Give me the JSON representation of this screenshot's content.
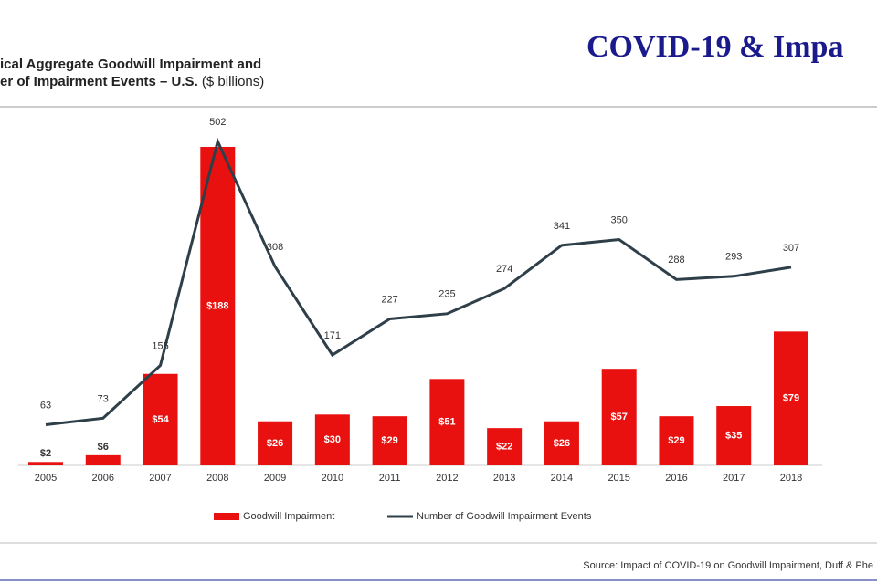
{
  "header": "COVID-19 & Impa",
  "source": "Source: Impact of COVID-19 on Goodwill Impairment, Duff & Phe",
  "chart_data": {
    "type": "bar",
    "title": [
      "ical Aggregate Goodwill Impairment and",
      "er of Impairment Events – U.S."
    ],
    "title_unit": "($ billions)",
    "categories": [
      "2005",
      "2006",
      "2007",
      "2008",
      "2009",
      "2010",
      "2011",
      "2012",
      "2013",
      "2014",
      "2015",
      "2016",
      "2017",
      "2018"
    ],
    "series": [
      {
        "name": "Goodwill Impairment",
        "type": "bar",
        "color": "#e8110f",
        "values": [
          2,
          6,
          54,
          188,
          26,
          30,
          29,
          51,
          22,
          26,
          57,
          29,
          35,
          79
        ],
        "value_labels": [
          "$2",
          "$6",
          "$54",
          "$188",
          "$26",
          "$30",
          "$29",
          "$51",
          "$22",
          "$26",
          "$57",
          "$29",
          "$35",
          "$79"
        ]
      },
      {
        "name": "Number of Goodwill Impairment Events",
        "type": "line",
        "axis": "y2",
        "color": "#2e3f4a",
        "values": [
          63,
          73,
          155,
          502,
          308,
          171,
          227,
          235,
          274,
          341,
          350,
          288,
          293,
          307
        ]
      }
    ]
  }
}
